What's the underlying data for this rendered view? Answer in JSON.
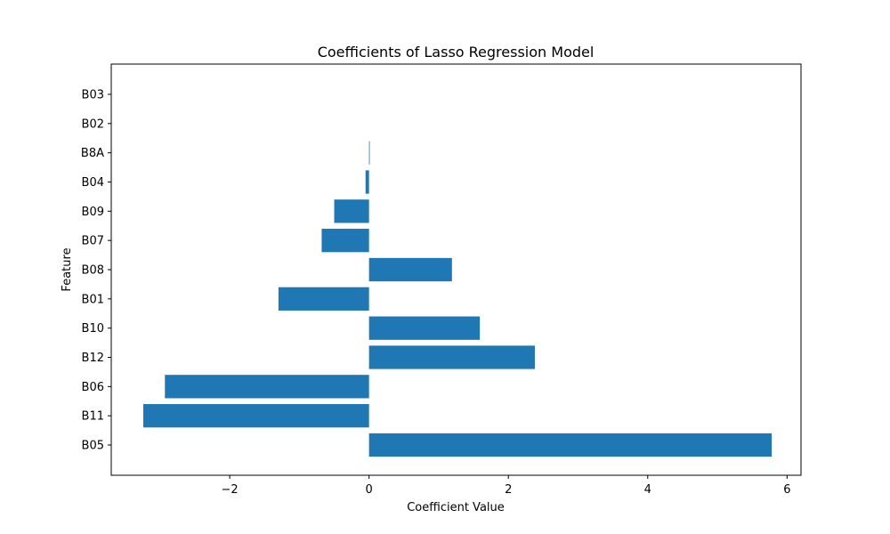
{
  "chart_data": {
    "type": "bar",
    "orientation": "horizontal",
    "title": "Coefficients of Lasso Regression Model",
    "xlabel": "Coefficient Value",
    "ylabel": "Feature",
    "categories": [
      "B05",
      "B11",
      "B06",
      "B12",
      "B10",
      "B01",
      "B08",
      "B07",
      "B09",
      "B04",
      "B8A",
      "B02",
      "B03"
    ],
    "values": [
      5.78,
      -3.24,
      -2.93,
      2.38,
      1.59,
      -1.3,
      1.19,
      -0.68,
      -0.5,
      -0.05,
      0.01,
      0.0,
      0.0
    ],
    "xlim": [
      -3.7,
      6.2
    ],
    "xticks": [
      -2,
      0,
      2,
      4,
      6
    ],
    "xtick_labels": [
      "−2",
      "0",
      "2",
      "4",
      "6"
    ],
    "grid": false,
    "color": "#1f77b4"
  }
}
